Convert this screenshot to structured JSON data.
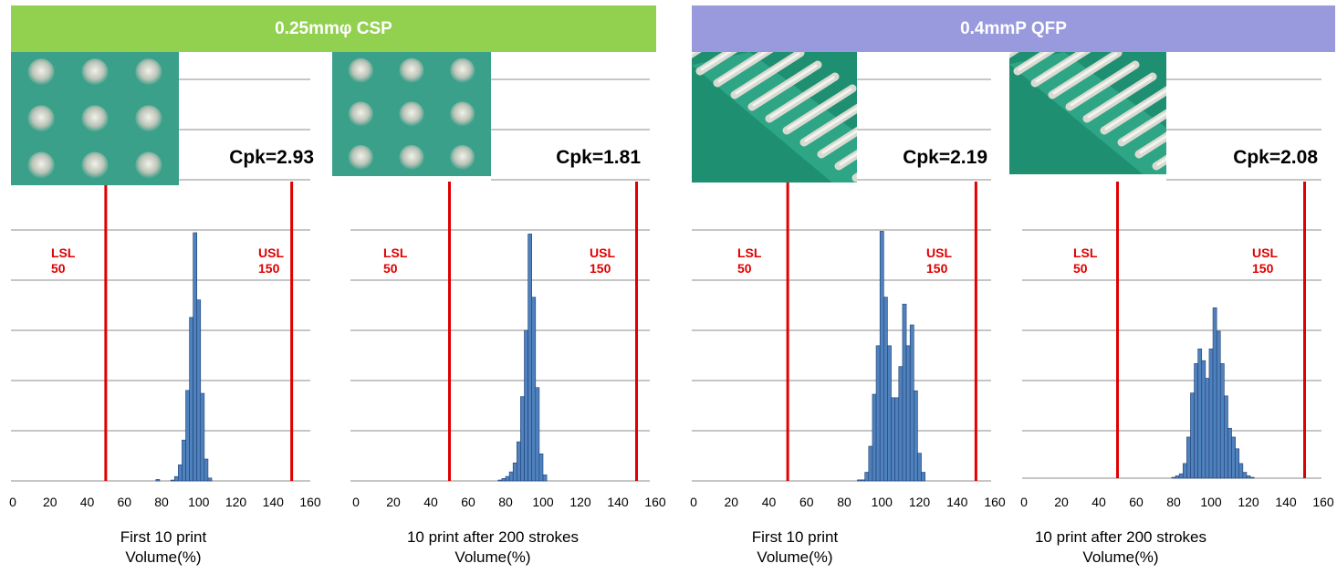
{
  "banners": {
    "left": {
      "label": "0.25mmφ  CSP",
      "color": "#92d050"
    },
    "right": {
      "label": "0.4mmP QFP",
      "color": "#9999dd"
    }
  },
  "colors": {
    "bar": "#4f81bd",
    "bar_edge": "#1f3f73",
    "spec_line": "#e00000",
    "grid": "#8c8c8c"
  },
  "chart_data": [
    {
      "type": "bar",
      "group": "0.25mmφ  CSP",
      "title": "Cpk=2.93",
      "xlabel": "First 10 print",
      "ylabel": "",
      "unit_label": "Volume(%)",
      "x_ticks": [
        0,
        20,
        40,
        60,
        80,
        100,
        120,
        140,
        160
      ],
      "xlim": [
        0,
        160
      ],
      "grid": true,
      "lsl": {
        "value": 50,
        "label": "LSL"
      },
      "usl": {
        "value": 150,
        "label": "USL"
      },
      "photo_icon": "solder-ball-array-photo",
      "bin_width": 2,
      "bins": [
        [
          77,
          0.5
        ],
        [
          85,
          0.3
        ],
        [
          87,
          1.5
        ],
        [
          89,
          5.5
        ],
        [
          91,
          14
        ],
        [
          93,
          31
        ],
        [
          95,
          56
        ],
        [
          97,
          85
        ],
        [
          99,
          62
        ],
        [
          101,
          30
        ],
        [
          103,
          7.5
        ],
        [
          105,
          1
        ]
      ]
    },
    {
      "type": "bar",
      "group": "0.25mmφ  CSP",
      "title": "Cpk=1.81",
      "xlabel": "10 print after 200 strokes",
      "ylabel": "",
      "unit_label": "Volume(%)",
      "x_ticks": [
        0,
        20,
        40,
        60,
        80,
        100,
        120,
        140,
        160
      ],
      "xlim": [
        0,
        160
      ],
      "grid": true,
      "lsl": {
        "value": 50,
        "label": "LSL"
      },
      "usl": {
        "value": 150,
        "label": "USL"
      },
      "photo_icon": "solder-ball-array-photo",
      "bin_width": 2,
      "bins": [
        [
          76,
          0.3
        ],
        [
          78,
          0.8
        ],
        [
          80,
          1.5
        ],
        [
          82,
          3
        ],
        [
          84,
          6
        ],
        [
          86,
          13
        ],
        [
          88,
          28
        ],
        [
          90,
          50
        ],
        [
          92,
          82
        ],
        [
          94,
          61
        ],
        [
          96,
          31
        ],
        [
          98,
          9
        ],
        [
          100,
          2
        ]
      ]
    },
    {
      "type": "bar",
      "group": "0.4mmP QFP",
      "title": "Cpk=2.19",
      "xlabel": "First 10 print",
      "ylabel": "",
      "unit_label": "Volume(%)",
      "x_ticks": [
        0,
        20,
        40,
        60,
        80,
        100,
        120,
        140,
        160
      ],
      "xlim": [
        0,
        160
      ],
      "grid": true,
      "lsl": {
        "value": 50,
        "label": "LSL"
      },
      "usl": {
        "value": 150,
        "label": "USL"
      },
      "photo_icon": "qfp-leads-photo",
      "bin_width": 2,
      "bins": [
        [
          87,
          0.3
        ],
        [
          89,
          0.3
        ],
        [
          91,
          2.5
        ],
        [
          93,
          10
        ],
        [
          95,
          25
        ],
        [
          97,
          39
        ],
        [
          99,
          72
        ],
        [
          101,
          53
        ],
        [
          103,
          39
        ],
        [
          105,
          24
        ],
        [
          107,
          24
        ],
        [
          109,
          33
        ],
        [
          111,
          51
        ],
        [
          113,
          39
        ],
        [
          115,
          45
        ],
        [
          117,
          26
        ],
        [
          119,
          8
        ],
        [
          121,
          2.5
        ]
      ]
    },
    {
      "type": "bar",
      "group": "0.4mmP QFP",
      "title": "Cpk=2.08",
      "xlabel": "10 print after 200 strokes",
      "ylabel": "",
      "unit_label": "Volume(%)",
      "x_ticks": [
        0,
        20,
        40,
        60,
        80,
        100,
        120,
        140,
        160
      ],
      "xlim": [
        0,
        160
      ],
      "grid": true,
      "lsl": {
        "value": 50,
        "label": "LSL"
      },
      "usl": {
        "value": 150,
        "label": "USL"
      },
      "photo_icon": "qfp-leads-photo",
      "bin_width": 2,
      "bins": [
        [
          79,
          0.3
        ],
        [
          81,
          0.8
        ],
        [
          83,
          1.5
        ],
        [
          85,
          5
        ],
        [
          87,
          14
        ],
        [
          89,
          29
        ],
        [
          91,
          39
        ],
        [
          93,
          44
        ],
        [
          95,
          40
        ],
        [
          97,
          34
        ],
        [
          99,
          44
        ],
        [
          101,
          58
        ],
        [
          103,
          50
        ],
        [
          105,
          39
        ],
        [
          107,
          28
        ],
        [
          109,
          17
        ],
        [
          111,
          14
        ],
        [
          113,
          10
        ],
        [
          115,
          5
        ],
        [
          117,
          2
        ],
        [
          119,
          0.8
        ],
        [
          121,
          0.3
        ]
      ]
    }
  ]
}
